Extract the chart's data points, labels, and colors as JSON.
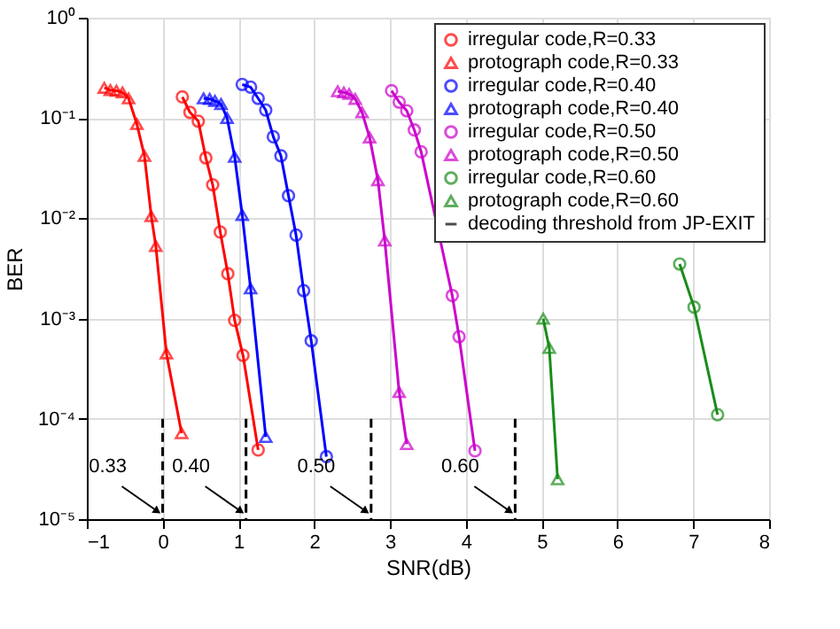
{
  "chart_data": {
    "type": "line",
    "xlabel": "SNR(dB)",
    "ylabel": "BER",
    "xlim": [
      -1,
      8
    ],
    "xticks": [
      -1,
      0,
      1,
      2,
      3,
      4,
      5,
      6,
      7,
      8
    ],
    "ylim": [
      1e-05,
      1
    ],
    "log": "y",
    "grid": true,
    "legend": "top right",
    "yticks": [
      {
        "value": 1e-05,
        "label": "10⁻⁵"
      },
      {
        "value": 0.0001,
        "label": "10⁻⁴"
      },
      {
        "value": 0.001,
        "label": "10⁻³"
      },
      {
        "value": 0.01,
        "label": "10⁻²"
      },
      {
        "value": 0.1,
        "label": "10⁻¹"
      },
      {
        "value": 1,
        "label": "10⁰"
      }
    ],
    "series": [
      {
        "name": "irregular code,R=0.33",
        "color": "#ff0000",
        "marker": "circle",
        "line_style": "solid",
        "x": [
          0.26,
          0.36,
          0.47,
          0.57,
          0.66,
          0.76,
          0.86,
          0.95,
          1.06,
          1.26
        ],
        "values": [
          0.162,
          0.114,
          0.093,
          0.04,
          0.0216,
          0.0073,
          0.0028,
          0.00096,
          0.00043,
          4.9e-05
        ]
      },
      {
        "name": "protograph code,R=0.33",
        "color": "#ff0000",
        "marker": "triangle",
        "line_style": "solid",
        "x": [
          -0.77,
          -0.69,
          -0.61,
          -0.53,
          -0.45,
          -0.34,
          -0.24,
          -0.15,
          -0.09,
          0.05,
          0.25
        ],
        "values": [
          0.2,
          0.19,
          0.187,
          0.18,
          0.157,
          0.087,
          0.042,
          0.0105,
          0.0053,
          0.00045,
          7.2e-05
        ]
      },
      {
        "name": "irregular code,R=0.40",
        "color": "#0000ff",
        "marker": "circle",
        "line_style": "solid",
        "x": [
          1.05,
          1.16,
          1.26,
          1.36,
          1.46,
          1.56,
          1.66,
          1.76,
          1.86,
          1.96,
          2.16
        ],
        "values": [
          0.216,
          0.203,
          0.157,
          0.12,
          0.065,
          0.042,
          0.0168,
          0.0068,
          0.0019,
          0.0006,
          4.2e-05
        ]
      },
      {
        "name": "protograph code,R=0.40",
        "color": "#0000ff",
        "marker": "triangle",
        "line_style": "solid",
        "x": [
          0.54,
          0.62,
          0.69,
          0.77,
          0.85,
          0.95,
          1.05,
          1.16,
          1.36
        ],
        "values": [
          0.157,
          0.155,
          0.148,
          0.138,
          0.1,
          0.041,
          0.0108,
          0.002,
          6.6e-05
        ]
      },
      {
        "name": "irregular code,R=0.50",
        "color": "#cc00cc",
        "marker": "circle",
        "line_style": "solid",
        "x": [
          3.02,
          3.12,
          3.22,
          3.32,
          3.41,
          3.82,
          3.91,
          4.12
        ],
        "values": [
          0.187,
          0.144,
          0.118,
          0.076,
          0.046,
          0.0017,
          0.00066,
          4.8e-05
        ]
      },
      {
        "name": "protograph code,R=0.50",
        "color": "#cc00cc",
        "marker": "triangle",
        "line_style": "solid",
        "x": [
          2.31,
          2.39,
          2.46,
          2.54,
          2.63,
          2.73,
          2.84,
          2.93,
          3.12,
          3.22
        ],
        "values": [
          0.185,
          0.18,
          0.174,
          0.155,
          0.114,
          0.064,
          0.024,
          0.006,
          0.000185,
          5.6e-05
        ]
      },
      {
        "name": "irregular code,R=0.60",
        "color": "#1a8c1a",
        "marker": "circle",
        "line_style": "solid",
        "x": [
          6.82,
          7.01,
          7.32
        ],
        "values": [
          0.0035,
          0.0013,
          0.00011
        ]
      },
      {
        "name": "protograph code,R=0.60",
        "color": "#1a8c1a",
        "marker": "triangle",
        "line_style": "solid",
        "x": [
          5.02,
          5.1,
          5.21
        ],
        "values": [
          0.001,
          0.00051,
          2.5e-05
        ]
      },
      {
        "name": "decoding threshold from JP-EXIT",
        "color": "#000000",
        "marker": "none",
        "line_style": "dashed",
        "x": [
          0,
          0,
          0.5,
          1.1,
          1.1,
          2,
          2.75,
          2.75,
          3.7,
          4.65,
          4.65
        ],
        "values": [
          0.0001,
          1e-05,
          null,
          0.0001,
          1e-05,
          null,
          0.0001,
          1e-05,
          null,
          0.0001,
          1e-05
        ]
      }
    ],
    "annotations": [
      {
        "text": "0.33",
        "x": 0,
        "y": 1.2e-05
      },
      {
        "text": "0.40",
        "x": 1.1,
        "y": 1.2e-05
      },
      {
        "text": "0.50",
        "x": 2.75,
        "y": 1.2e-05
      },
      {
        "text": "0.60",
        "x": 4.65,
        "y": 1.2e-05
      }
    ]
  }
}
